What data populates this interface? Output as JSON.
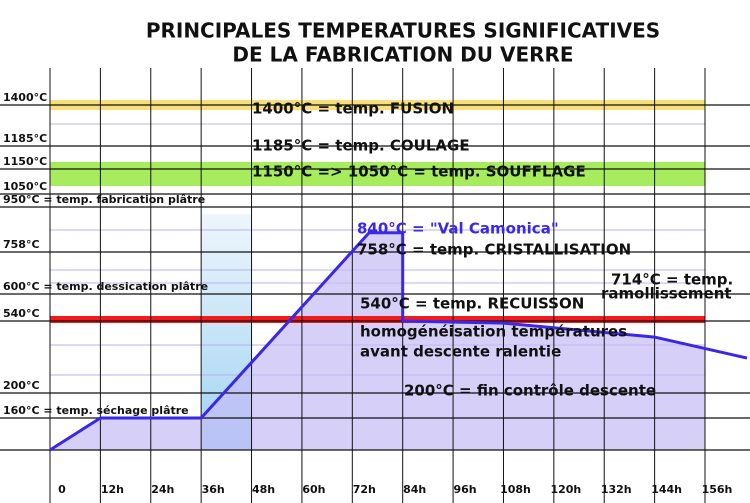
{
  "chart_data": {
    "type": "line",
    "title": [
      "PRINCIPALES TEMPERATURES SIGNIFICATIVES",
      "DE LA FABRICATION DU VERRE"
    ],
    "x": [
      0,
      12,
      36,
      76,
      84,
      84,
      108,
      144,
      166
    ],
    "series": [
      {
        "color": "#3a28e8",
        "values": [
          0,
          160,
          160,
          840,
          840,
          540,
          530,
          464,
          365
        ]
      }
    ],
    "xlim": [
      0,
      156
    ],
    "xticks": [
      0,
      {
        "value": 12,
        "label": "12h"
      },
      {
        "value": 24,
        "label": "24h"
      },
      {
        "value": 36,
        "label": "36h"
      },
      {
        "value": 48,
        "label": "48h"
      },
      {
        "value": 60,
        "label": "60h"
      },
      {
        "value": 72,
        "label": "72h"
      },
      {
        "value": 84,
        "label": "84h"
      },
      {
        "value": 96,
        "label": "96h"
      },
      {
        "value": 108,
        "label": "108h"
      },
      {
        "value": 120,
        "label": "120h"
      },
      {
        "value": 132,
        "label": "132h"
      },
      {
        "value": 144,
        "label": "144h"
      },
      {
        "value": 156,
        "label": "156h"
      }
    ],
    "ylim": [
      0,
      1400
    ],
    "yticks": [
      {
        "value": 1400,
        "label": "1400°C"
      },
      {
        "value": 1185,
        "label": "1185°C"
      },
      {
        "value": 1150,
        "label": "1150°C"
      },
      {
        "value": 1050,
        "label": "1050°C"
      },
      {
        "value": 950,
        "label": "950°C = temp. fabrication plâtre"
      },
      {
        "value": 758,
        "label": "758°C"
      },
      {
        "value": 600,
        "label": "600°C = temp. dessication plâtre"
      },
      {
        "value": 540,
        "label": "540°C"
      },
      {
        "value": 200,
        "label": "200°C"
      },
      {
        "value": 160,
        "label": "160°C = temp. séchage plâtre"
      }
    ],
    "annotations": [
      "1400°C = temp. FUSION",
      "1185°C = temp. COULAGE",
      "1150°C => 1050°C = temp. SOUFFLAGE",
      "840°C = \"Val Camonica\"",
      "758°C = temp. CRISTALLISATION",
      "714°C = temp.",
      "ramollissement",
      "540°C = temp. RECUISSON",
      "homogénéisation températures",
      "avant descente ralentie",
      "200°C = fin contrôle descente"
    ]
  }
}
